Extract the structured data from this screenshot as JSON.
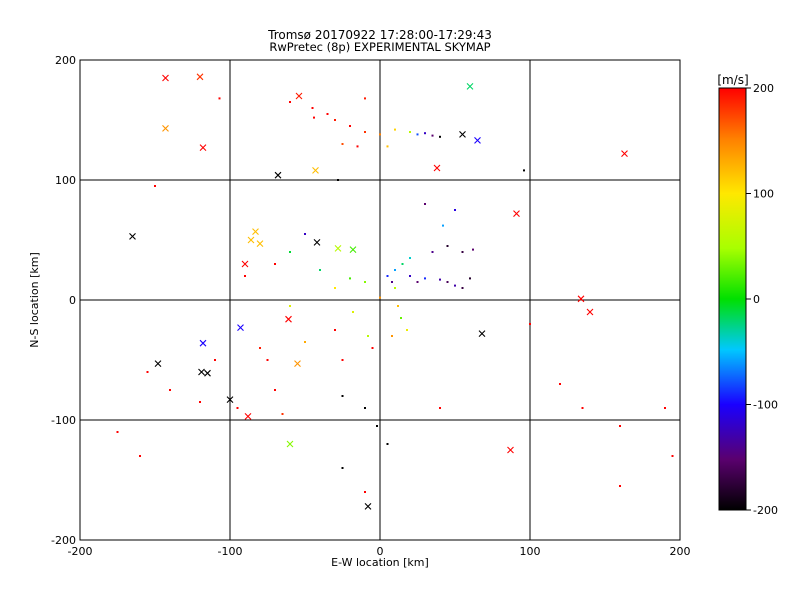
{
  "chart_data": {
    "type": "scatter",
    "title": "Tromsø 20170922 17:28:00-17:29:43",
    "subtitle": "RwPretec (8p) EXPERIMENTAL SKYMAP",
    "xlabel": "E-W location [km]",
    "ylabel": "N-S location [km]",
    "xlim": [
      -200,
      200
    ],
    "ylim": [
      -200,
      200
    ],
    "xticks": [
      "-200",
      "-100",
      "0",
      "100",
      "200"
    ],
    "yticks": [
      "-200",
      "-100",
      "0",
      "100",
      "200"
    ],
    "grid": true,
    "colorbar": {
      "label": "[m/s]",
      "range": [
        -200,
        200
      ],
      "ticks": [
        "200",
        "100",
        "0",
        "-100",
        "-200"
      ],
      "colormap": "rainbow (black-purple-blue-cyan-green-yellow-red)"
    },
    "series": [
      {
        "marker": "x",
        "points": [
          [
            -143,
            185,
            200
          ],
          [
            -120,
            186,
            180
          ],
          [
            -143,
            143,
            140
          ],
          [
            -118,
            127,
            200
          ],
          [
            -54,
            170,
            190
          ],
          [
            -43,
            108,
            120
          ],
          [
            -68,
            104,
            -200
          ],
          [
            60,
            178,
            -20
          ],
          [
            38,
            110,
            200
          ],
          [
            55,
            138,
            -200
          ],
          [
            65,
            133,
            -100
          ],
          [
            163,
            122,
            200
          ],
          [
            -165,
            53,
            -200
          ],
          [
            -83,
            57,
            120
          ],
          [
            -86,
            50,
            120
          ],
          [
            -80,
            47,
            120
          ],
          [
            -90,
            30,
            200
          ],
          [
            -42,
            48,
            -200
          ],
          [
            -28,
            43,
            60
          ],
          [
            -18,
            42,
            20
          ],
          [
            91,
            72,
            200
          ],
          [
            134,
            1,
            200
          ],
          [
            140,
            -10,
            200
          ],
          [
            68,
            -28,
            -200
          ],
          [
            -61,
            -16,
            200
          ],
          [
            -93,
            -23,
            -100
          ],
          [
            -118,
            -36,
            -100
          ],
          [
            -148,
            -53,
            -200
          ],
          [
            -119,
            -60,
            -200
          ],
          [
            -115,
            -61,
            -200
          ],
          [
            -100,
            -83,
            -200
          ],
          [
            -60,
            -120,
            40
          ],
          [
            -88,
            -97,
            200
          ],
          [
            87,
            -125,
            200
          ],
          [
            -8,
            -172,
            -200
          ],
          [
            -55,
            -53,
            140
          ]
        ]
      },
      {
        "marker": "dot",
        "points": [
          [
            -60,
            165,
            200
          ],
          [
            -45,
            160,
            200
          ],
          [
            -30,
            150,
            190
          ],
          [
            -20,
            145,
            200
          ],
          [
            -10,
            140,
            180
          ],
          [
            0,
            138,
            150
          ],
          [
            10,
            142,
            110
          ],
          [
            20,
            140,
            60
          ],
          [
            25,
            138,
            -80
          ],
          [
            30,
            139,
            -120
          ],
          [
            35,
            137,
            -150
          ],
          [
            40,
            136,
            -200
          ],
          [
            -35,
            155,
            200
          ],
          [
            -25,
            130,
            170
          ],
          [
            -15,
            128,
            200
          ],
          [
            5,
            128,
            120
          ],
          [
            -155,
            -60,
            200
          ],
          [
            -140,
            -75,
            200
          ],
          [
            -120,
            -85,
            200
          ],
          [
            -110,
            -50,
            200
          ],
          [
            -75,
            -50,
            200
          ],
          [
            -70,
            -75,
            200
          ],
          [
            -80,
            -40,
            190
          ],
          [
            -95,
            -90,
            200
          ],
          [
            -175,
            -110,
            200
          ],
          [
            -160,
            -130,
            200
          ],
          [
            -65,
            -95,
            180
          ],
          [
            -50,
            -35,
            130
          ],
          [
            -30,
            -25,
            200
          ],
          [
            -25,
            -50,
            200
          ],
          [
            -5,
            -40,
            200
          ],
          [
            0,
            2,
            140
          ],
          [
            5,
            20,
            -90
          ],
          [
            8,
            15,
            -140
          ],
          [
            10,
            25,
            -60
          ],
          [
            15,
            30,
            -20
          ],
          [
            20,
            20,
            -120
          ],
          [
            25,
            15,
            -150
          ],
          [
            30,
            18,
            -90
          ],
          [
            40,
            17,
            -130
          ],
          [
            45,
            15,
            -160
          ],
          [
            50,
            12,
            -130
          ],
          [
            55,
            10,
            -170
          ],
          [
            60,
            18,
            -180
          ],
          [
            35,
            40,
            -140
          ],
          [
            45,
            45,
            -180
          ],
          [
            55,
            40,
            -170
          ],
          [
            62,
            42,
            -150
          ],
          [
            20,
            35,
            -40
          ],
          [
            10,
            10,
            60
          ],
          [
            12,
            -5,
            120
          ],
          [
            14,
            -15,
            30
          ],
          [
            18,
            -25,
            90
          ],
          [
            8,
            -30,
            140
          ],
          [
            -8,
            -30,
            60
          ],
          [
            -18,
            -10,
            80
          ],
          [
            -10,
            15,
            40
          ],
          [
            -20,
            18,
            20
          ],
          [
            -30,
            10,
            100
          ],
          [
            -40,
            25,
            -20
          ],
          [
            -60,
            40,
            -10
          ],
          [
            -50,
            55,
            -120
          ],
          [
            -70,
            30,
            200
          ],
          [
            -90,
            20,
            200
          ],
          [
            -60,
            -5,
            80
          ],
          [
            -25,
            -80,
            -200
          ],
          [
            -10,
            -90,
            -200
          ],
          [
            -2,
            -105,
            -200
          ],
          [
            -25,
            -140,
            -200
          ],
          [
            -10,
            -160,
            200
          ],
          [
            5,
            -120,
            -200
          ],
          [
            40,
            -90,
            200
          ],
          [
            30,
            80,
            -150
          ],
          [
            50,
            75,
            -110
          ],
          [
            42,
            62,
            -60
          ],
          [
            100,
            -20,
            200
          ],
          [
            120,
            -70,
            200
          ],
          [
            135,
            -90,
            200
          ],
          [
            160,
            -155,
            200
          ],
          [
            190,
            -90,
            200
          ],
          [
            195,
            -130,
            200
          ],
          [
            -150,
            95,
            200
          ],
          [
            -107,
            168,
            200
          ],
          [
            -44,
            152,
            200
          ],
          [
            -10,
            168,
            190
          ],
          [
            -28,
            100,
            -200
          ],
          [
            96,
            108,
            -200
          ],
          [
            160,
            -105,
            200
          ]
        ]
      }
    ]
  }
}
